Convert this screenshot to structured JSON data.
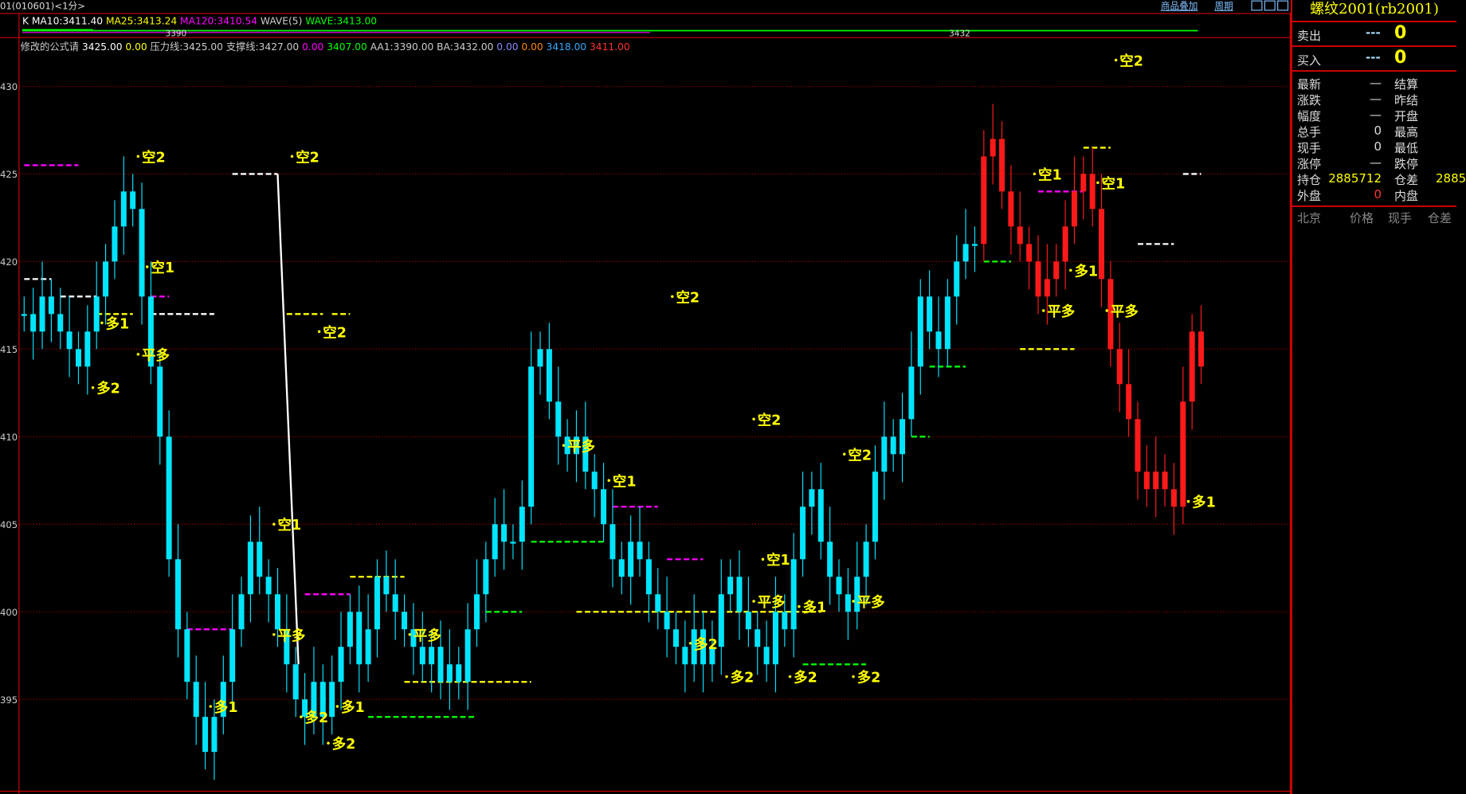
{
  "header": {
    "title": "01(010601)<1分>",
    "overlay_button": "商品叠加",
    "period_button": "周期",
    "ma_line": [
      {
        "text": "K",
        "color": "#ffffff"
      },
      {
        "text": "MA10:3411.40",
        "color": "#ffffff"
      },
      {
        "text": "MA25:3413.24",
        "color": "#ffff00"
      },
      {
        "text": "MA120:3410.54",
        "color": "#ff00ff"
      },
      {
        "text": "WAVE(5)",
        "color": "#cccccc"
      },
      {
        "text": "WAVE:3413.00",
        "color": "#00ff00"
      }
    ],
    "mini_labels": [
      "3390",
      "3432"
    ],
    "formula_line": [
      {
        "text": "修改的公式请",
        "color": "#cccccc"
      },
      {
        "text": "3425.00",
        "color": "#ffffff"
      },
      {
        "text": "0.00",
        "color": "#ffff00"
      },
      {
        "text": "压力线:3425.00",
        "color": "#cccccc"
      },
      {
        "text": "支撑线:3427.00",
        "color": "#cccccc"
      },
      {
        "text": "0.00",
        "color": "#ff00ff"
      },
      {
        "text": "3407.00",
        "color": "#00ff00"
      },
      {
        "text": "AA1:3390.00",
        "color": "#cccccc"
      },
      {
        "text": "BA:3432.00",
        "color": "#cccccc"
      },
      {
        "text": "0.00",
        "color": "#8888ff"
      },
      {
        "text": "0.00",
        "color": "#ff8800"
      },
      {
        "text": "3418.00",
        "color": "#33aaff"
      },
      {
        "text": "3411.00",
        "color": "#ff3333"
      }
    ]
  },
  "panel": {
    "title": "螺纹2001(rb2001)",
    "sell": {
      "label": "卖出",
      "dash": "---",
      "value": "0"
    },
    "buy": {
      "label": "买入",
      "dash": "---",
      "value": "0"
    },
    "rows": [
      {
        "k1": "最新",
        "v1": "—",
        "k2": "结算",
        "v2": ""
      },
      {
        "k1": "涨跌",
        "v1": "—",
        "k2": "昨结",
        "v2": ""
      },
      {
        "k1": "幅度",
        "v1": "—",
        "k2": "开盘",
        "v2": ""
      },
      {
        "k1": "总手",
        "v1": "0",
        "k2": "最高",
        "v2": ""
      },
      {
        "k1": "现手",
        "v1": "0",
        "k2": "最低",
        "v2": ""
      },
      {
        "k1": "涨停",
        "v1": "—",
        "k2": "跌停",
        "v2": ""
      },
      {
        "k1": "持仓",
        "v1": "2885712",
        "k2": "仓差",
        "v2": "2885"
      },
      {
        "k1": "外盘",
        "v1": "0",
        "k2": "内盘",
        "v2": ""
      }
    ],
    "table_headers": [
      "北京",
      "价格",
      "现手",
      "仓差"
    ]
  },
  "chart_data": {
    "type": "candlestick",
    "y_ticks": [
      "430",
      "425",
      "420",
      "415",
      "410",
      "405",
      "400",
      "395"
    ],
    "y_tick_values": [
      3430,
      3425,
      3420,
      3415,
      3410,
      3405,
      3400,
      3395
    ],
    "ylim": [
      3390.5,
      3434
    ],
    "grid": true,
    "colors": {
      "candle": "#00e5ff",
      "candle_late": "#ff1a1a",
      "grid": "#aa0000",
      "signal": "#ffff00"
    },
    "red_from_index": 106,
    "closes": [
      3417,
      3416,
      3418,
      3417,
      3416,
      3415,
      3414,
      3416,
      3418,
      3420,
      3422,
      3424,
      3423,
      3418,
      3414,
      3410,
      3403,
      3399,
      3396,
      3394,
      3392,
      3394,
      3396,
      3399,
      3401,
      3404,
      3402,
      3401,
      3399,
      3397,
      3395,
      3394,
      3396,
      3394,
      3396,
      3398,
      3400,
      3397,
      3399,
      3402,
      3401,
      3400,
      3399,
      3398,
      3397,
      3398,
      3396,
      3397,
      3396,
      3399,
      3401,
      3403,
      3405,
      3404,
      3404,
      3406,
      3414,
      3415,
      3412,
      3410,
      3409,
      3410,
      3408,
      3407,
      3405,
      3403,
      3402,
      3404,
      3403,
      3401,
      3400,
      3399,
      3398,
      3397,
      3399,
      3397,
      3398,
      3401,
      3402,
      3400,
      3399,
      3398,
      3397,
      3400,
      3399,
      3403,
      3406,
      3407,
      3404,
      3402,
      3401,
      3400,
      3402,
      3404,
      3408,
      3410,
      3409,
      3411,
      3414,
      3418,
      3416,
      3415,
      3418,
      3420,
      3421,
      3421,
      3426,
      3427,
      3424,
      3422,
      3421,
      3420,
      3418,
      3419,
      3420,
      3422,
      3424,
      3425,
      3423,
      3419,
      3415,
      3413,
      3411,
      3408,
      3407,
      3408,
      3407,
      3406,
      3412,
      3416,
      3414
    ],
    "signals": [
      {
        "text": "空2",
        "index": 13,
        "price": 3426
      },
      {
        "text": "空2",
        "index": 30,
        "price": 3426
      },
      {
        "text": "空1",
        "index": 14,
        "price": 3419.7
      },
      {
        "text": "多1",
        "index": 9,
        "price": 3416.5
      },
      {
        "text": "平多",
        "index": 13,
        "price": 3414.7
      },
      {
        "text": "多2",
        "index": 8,
        "price": 3412.8
      },
      {
        "text": "空2",
        "index": 33,
        "price": 3416
      },
      {
        "text": "空2",
        "index": 72,
        "price": 3418
      },
      {
        "text": "空2",
        "index": 81,
        "price": 3411
      },
      {
        "text": "空2",
        "index": 91,
        "price": 3409
      },
      {
        "text": "空1",
        "index": 65,
        "price": 3407.5
      },
      {
        "text": "空1",
        "index": 28,
        "price": 3405
      },
      {
        "text": "空1",
        "index": 82,
        "price": 3403
      },
      {
        "text": "空1",
        "index": 112,
        "price": 3425
      },
      {
        "text": "空1",
        "index": 119,
        "price": 3424.5
      },
      {
        "text": "多1",
        "index": 116,
        "price": 3419.5
      },
      {
        "text": "平多",
        "index": 113,
        "price": 3417.2
      },
      {
        "text": "平多",
        "index": 120,
        "price": 3417.2
      },
      {
        "text": "多1",
        "index": 129,
        "price": 3406.3
      },
      {
        "text": "平多",
        "index": 60,
        "price": 3409.5
      },
      {
        "text": "平多",
        "index": 28,
        "price": 3398.7
      },
      {
        "text": "平多",
        "index": 43,
        "price": 3398.7
      },
      {
        "text": "平多",
        "index": 81,
        "price": 3400.6
      },
      {
        "text": "平多",
        "index": 92,
        "price": 3400.6
      },
      {
        "text": "多1",
        "index": 86,
        "price": 3400.3
      },
      {
        "text": "多1",
        "index": 21,
        "price": 3394.6
      },
      {
        "text": "多1",
        "index": 35,
        "price": 3394.6
      },
      {
        "text": "多2",
        "index": 31,
        "price": 3394
      },
      {
        "text": "多2",
        "index": 34,
        "price": 3392.5
      },
      {
        "text": "多2",
        "index": 74,
        "price": 3398.2
      },
      {
        "text": "多2",
        "index": 78,
        "price": 3396.3
      },
      {
        "text": "多2",
        "index": 85,
        "price": 3396.3
      },
      {
        "text": "多2",
        "index": 92,
        "price": 3396.3
      },
      {
        "text": "空2",
        "index": 121,
        "price": 3431.5
      }
    ],
    "levels": [
      {
        "from": 0,
        "to": 6,
        "price": 3425.5,
        "color": "#ff00ff"
      },
      {
        "from": 23,
        "to": 28,
        "price": 3425,
        "color": "#ffffff"
      },
      {
        "from": 0,
        "to": 3,
        "price": 3419,
        "color": "#ffffff"
      },
      {
        "from": 4,
        "to": 8,
        "price": 3418,
        "color": "#ffffff"
      },
      {
        "from": 8,
        "to": 12,
        "price": 3417,
        "color": "#ffff00"
      },
      {
        "from": 14,
        "to": 21,
        "price": 3417,
        "color": "#ffffff"
      },
      {
        "from": 14,
        "to": 16,
        "price": 3418,
        "color": "#ff00ff"
      },
      {
        "from": 29,
        "to": 33,
        "price": 3417,
        "color": "#ffff00"
      },
      {
        "from": 34,
        "to": 36,
        "price": 3417,
        "color": "#ffff00"
      },
      {
        "from": 18,
        "to": 23,
        "price": 3399,
        "color": "#ff00ff"
      },
      {
        "from": 31,
        "to": 36,
        "price": 3401,
        "color": "#ff00ff"
      },
      {
        "from": 38,
        "to": 50,
        "price": 3394,
        "color": "#00ff00"
      },
      {
        "from": 42,
        "to": 56,
        "price": 3396,
        "color": "#ffff00"
      },
      {
        "from": 36,
        "to": 42,
        "price": 3402,
        "color": "#ffff00"
      },
      {
        "from": 51,
        "to": 55,
        "price": 3400,
        "color": "#00ff00"
      },
      {
        "from": 61,
        "to": 88,
        "price": 3400,
        "color": "#ffff00"
      },
      {
        "from": 56,
        "to": 64,
        "price": 3404,
        "color": "#00ff00"
      },
      {
        "from": 65,
        "to": 70,
        "price": 3406,
        "color": "#ff00ff"
      },
      {
        "from": 71,
        "to": 75,
        "price": 3403,
        "color": "#ff00ff"
      },
      {
        "from": 86,
        "to": 93,
        "price": 3397,
        "color": "#00ff00"
      },
      {
        "from": 123,
        "to": 127,
        "price": 3421,
        "color": "#ffffff"
      },
      {
        "from": 110,
        "to": 116,
        "price": 3415,
        "color": "#ffff00"
      },
      {
        "from": 117,
        "to": 120,
        "price": 3426.5,
        "color": "#ffff00"
      },
      {
        "from": 112,
        "to": 117,
        "price": 3424,
        "color": "#ff00ff"
      },
      {
        "from": 106,
        "to": 109,
        "price": 3420,
        "color": "#00ff00"
      },
      {
        "from": 100,
        "to": 104,
        "price": 3414,
        "color": "#00ff00"
      },
      {
        "from": 98,
        "to": 100,
        "price": 3410,
        "color": "#00ff00"
      },
      {
        "from": 128,
        "to": 130,
        "price": 3425,
        "color": "#ffffff"
      }
    ],
    "white_line": {
      "from": {
        "index": 28,
        "price": 3425
      },
      "to": {
        "index": 30.3,
        "price": 3397
      }
    }
  }
}
